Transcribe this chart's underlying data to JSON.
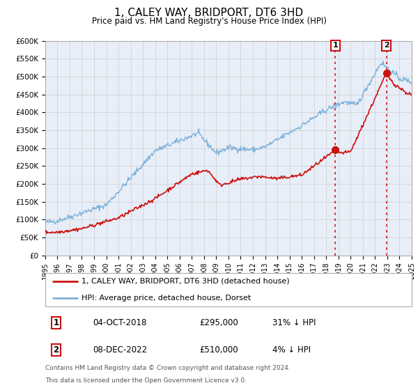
{
  "title": "1, CALEY WAY, BRIDPORT, DT6 3HD",
  "subtitle": "Price paid vs. HM Land Registry's House Price Index (HPI)",
  "ylim": [
    0,
    600000
  ],
  "ytick_labels": [
    "£0",
    "£50K",
    "£100K",
    "£150K",
    "£200K",
    "£250K",
    "£300K",
    "£350K",
    "£400K",
    "£450K",
    "£500K",
    "£550K",
    "£600K"
  ],
  "ytick_values": [
    0,
    50000,
    100000,
    150000,
    200000,
    250000,
    300000,
    350000,
    400000,
    450000,
    500000,
    550000,
    600000
  ],
  "hpi_color": "#7ab0d8",
  "price_color": "#cc1111",
  "marker1_date_num": 2018.75,
  "marker1_price": 295000,
  "marker1_label": "04-OCT-2018",
  "marker1_price_str": "£295,000",
  "marker1_pct": "31% ↓ HPI",
  "marker2_date_num": 2022.93,
  "marker2_price": 510000,
  "marker2_label": "08-DEC-2022",
  "marker2_price_str": "£510,000",
  "marker2_pct": "4% ↓ HPI",
  "legend_label_price": "1, CALEY WAY, BRIDPORT, DT6 3HD (detached house)",
  "legend_label_hpi": "HPI: Average price, detached house, Dorset",
  "footnote1": "Contains HM Land Registry data © Crown copyright and database right 2024.",
  "footnote2": "This data is licensed under the Open Government Licence v3.0.",
  "bg_color": "#e8eef8",
  "plot_bg": "#ffffff"
}
